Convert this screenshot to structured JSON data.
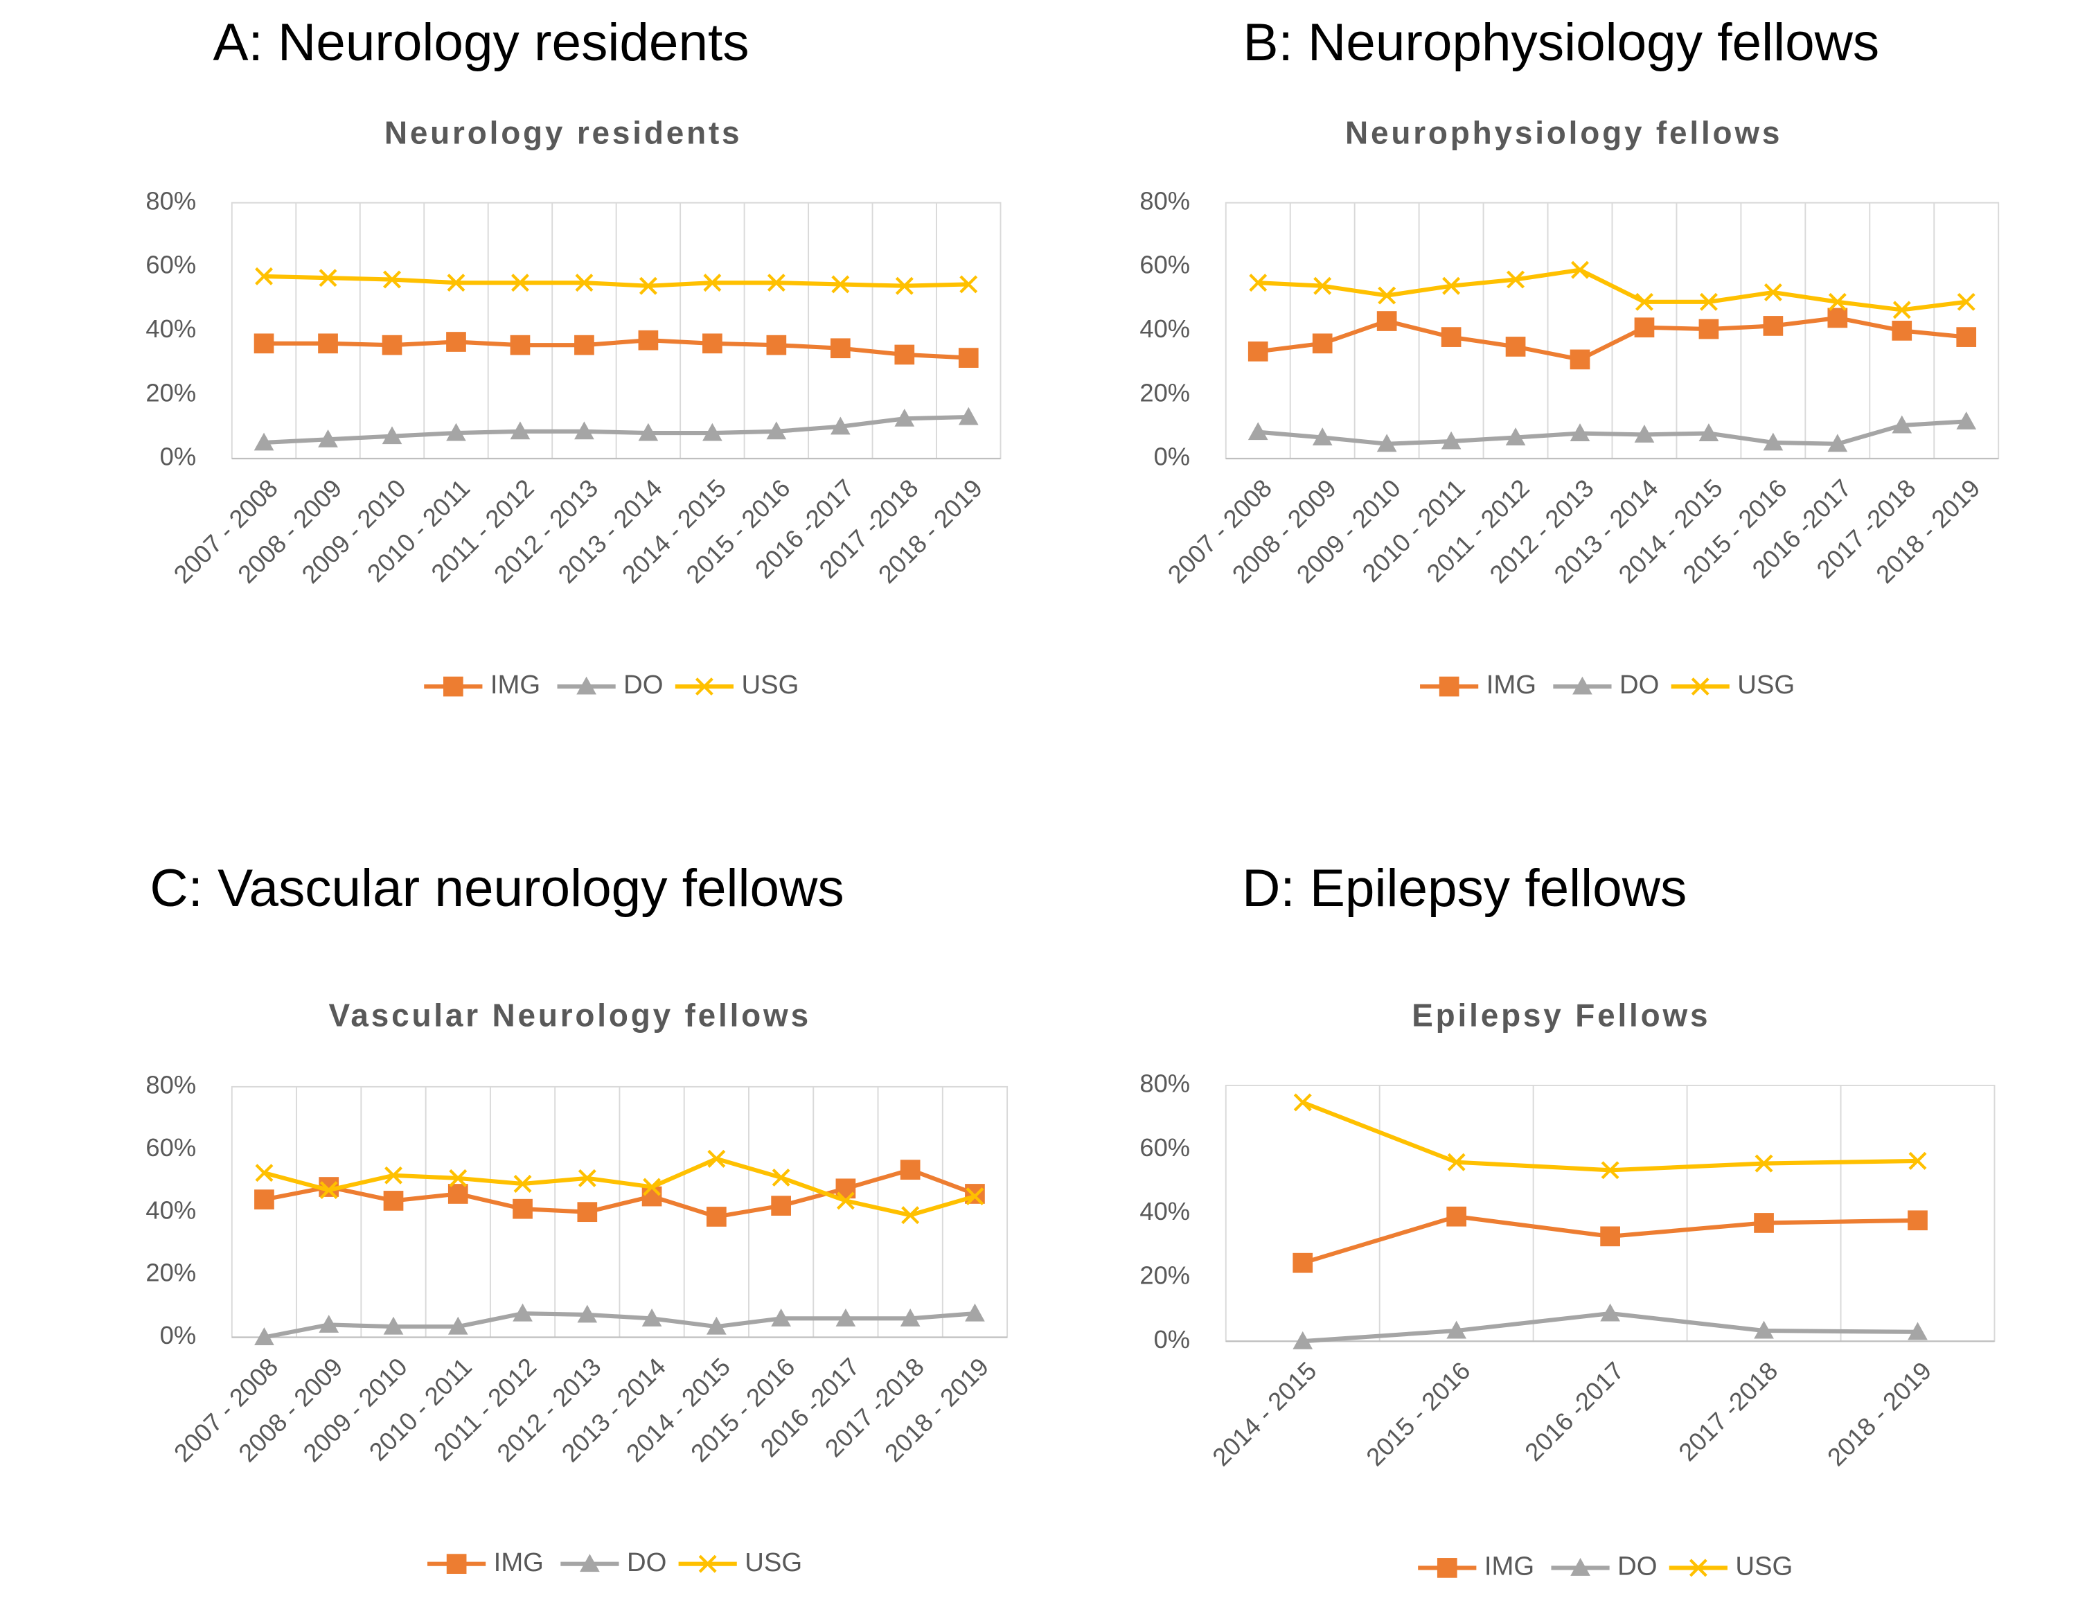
{
  "chart_data": [
    {
      "type": "line",
      "panel_title": "A: Neurology residents",
      "title": "Neurology residents",
      "categories": [
        "2007 - 2008",
        "2008 - 2009",
        "2009 - 2010",
        "2010 - 2011",
        "2011 - 2012",
        "2012 - 2013",
        "2013 - 2014",
        "2014 - 2015",
        "2015 - 2016",
        "2016 -2017",
        "2017 -2018",
        "2018 - 2019"
      ],
      "series": [
        {
          "name": "IMG",
          "color": "#ED7D31",
          "marker": "square",
          "values": [
            36,
            36,
            35.5,
            36.5,
            35.5,
            35.5,
            37,
            36,
            35.5,
            34.5,
            32.5,
            31.5
          ]
        },
        {
          "name": "DO",
          "color": "#A5A5A5",
          "marker": "triangle",
          "values": [
            5,
            6,
            7,
            8,
            8.5,
            8.5,
            8,
            8,
            8.5,
            10,
            12.5,
            13
          ]
        },
        {
          "name": "USG",
          "color": "#FFC000",
          "marker": "x",
          "values": [
            57,
            56.5,
            56,
            55,
            55,
            55,
            54,
            55,
            55,
            54.5,
            54,
            54.5
          ]
        }
      ],
      "ylim": [
        0,
        80
      ],
      "yticks": [
        {
          "value": 0,
          "label": "0%"
        },
        {
          "value": 20,
          "label": "20%"
        },
        {
          "value": 40,
          "label": "40%"
        },
        {
          "value": 60,
          "label": "60%"
        },
        {
          "value": 80,
          "label": "80%"
        }
      ],
      "grid": "vertical",
      "legend": "bottom"
    },
    {
      "type": "line",
      "panel_title": "B: Neurophysiology fellows",
      "title": "Neurophysiology fellows",
      "categories": [
        "2007 - 2008",
        "2008 - 2009",
        "2009 - 2010",
        "2010 - 2011",
        "2011 - 2012",
        "2012 - 2013",
        "2013 - 2014",
        "2014 - 2015",
        "2015 - 2016",
        "2016 -2017",
        "2017 -2018",
        "2018 - 2019"
      ],
      "series": [
        {
          "name": "IMG",
          "color": "#ED7D31",
          "marker": "square",
          "values": [
            33.5,
            36,
            43,
            38,
            35,
            31,
            41,
            40.5,
            41.5,
            44,
            40,
            38
          ]
        },
        {
          "name": "DO",
          "color": "#A5A5A5",
          "marker": "triangle",
          "values": [
            8.3,
            6.6,
            4.6,
            5.4,
            6.6,
            7.9,
            7.5,
            7.9,
            5,
            4.6,
            10.4,
            11.6
          ]
        },
        {
          "name": "USG",
          "color": "#FFC000",
          "marker": "x",
          "values": [
            55,
            54,
            51,
            54,
            56,
            59,
            49,
            49,
            52,
            49,
            46.5,
            49
          ]
        }
      ],
      "ylim": [
        0,
        80
      ],
      "yticks": [
        {
          "value": 0,
          "label": "0%"
        },
        {
          "value": 20,
          "label": "20%"
        },
        {
          "value": 40,
          "label": "40%"
        },
        {
          "value": 60,
          "label": "60%"
        },
        {
          "value": 80,
          "label": "80%"
        }
      ],
      "grid": "vertical",
      "legend": "bottom"
    },
    {
      "type": "line",
      "panel_title": "C: Vascular neurology fellows",
      "title": "Vascular Neurology fellows",
      "categories": [
        "2007 - 2008",
        "2008 - 2009",
        "2009 - 2010",
        "2010 - 2011",
        "2011 - 2012",
        "2012 - 2013",
        "2013 - 2014",
        "2014 - 2015",
        "2015 - 2016",
        "2016 -2017",
        "2017 -2018",
        "2018 - 2019"
      ],
      "series": [
        {
          "name": "IMG",
          "color": "#ED7D31",
          "marker": "square",
          "values": [
            44,
            48,
            43.6,
            45.8,
            41,
            40,
            45,
            38.5,
            42,
            47.5,
            53.5,
            45.8
          ]
        },
        {
          "name": "DO",
          "color": "#A5A5A5",
          "marker": "triangle",
          "values": [
            0,
            4,
            3.4,
            3.4,
            7.6,
            7.2,
            6,
            3.4,
            6,
            6,
            6,
            7.6
          ]
        },
        {
          "name": "USG",
          "color": "#FFC000",
          "marker": "x",
          "values": [
            52.5,
            47,
            51.7,
            50.8,
            49,
            50.8,
            48,
            57,
            51,
            43.6,
            39,
            45
          ]
        }
      ],
      "ylim": [
        0,
        80
      ],
      "yticks": [
        {
          "value": 0,
          "label": "0%"
        },
        {
          "value": 20,
          "label": "20%"
        },
        {
          "value": 40,
          "label": "40%"
        },
        {
          "value": 60,
          "label": "60%"
        },
        {
          "value": 80,
          "label": "80%"
        }
      ],
      "grid": "vertical",
      "legend": "bottom"
    },
    {
      "type": "line",
      "panel_title": "D: Epilepsy fellows",
      "title": "Epilepsy Fellows",
      "categories": [
        "2014 - 2015",
        "2015 - 2016",
        "2016 -2017",
        "2017 -2018",
        "2018 - 2019"
      ],
      "series": [
        {
          "name": "IMG",
          "color": "#ED7D31",
          "marker": "square",
          "values": [
            24.5,
            39,
            32.8,
            37,
            37.8
          ]
        },
        {
          "name": "DO",
          "color": "#A5A5A5",
          "marker": "triangle",
          "values": [
            0,
            3.3,
            8.7,
            3.3,
            2.9
          ]
        },
        {
          "name": "USG",
          "color": "#FFC000",
          "marker": "x",
          "values": [
            74.7,
            56,
            53.5,
            55.6,
            56.4
          ]
        }
      ],
      "ylim": [
        0,
        80
      ],
      "yticks": [
        {
          "value": 0,
          "label": "0%"
        },
        {
          "value": 20,
          "label": "20%"
        },
        {
          "value": 40,
          "label": "40%"
        },
        {
          "value": 60,
          "label": "60%"
        },
        {
          "value": 80,
          "label": "80%"
        }
      ],
      "grid": "vertical",
      "legend": "bottom"
    }
  ]
}
